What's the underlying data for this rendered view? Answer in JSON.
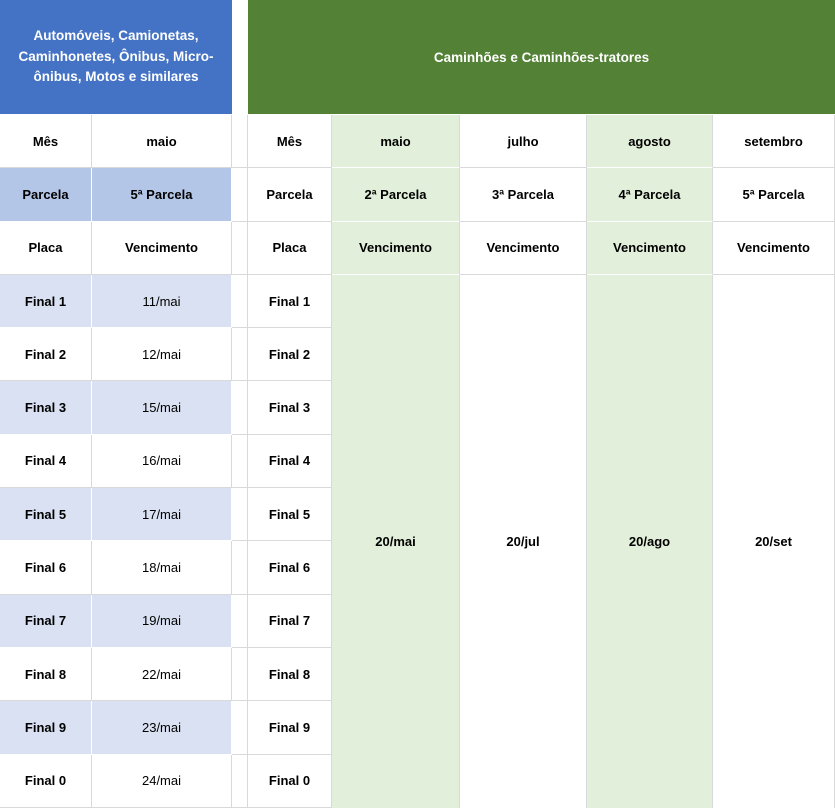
{
  "colors": {
    "blue_header": "#4472C4",
    "blue_band": "#B4C6E7",
    "blue_row": "#D9E1F2",
    "green_header": "#538135",
    "green_col": "#E2EFDA",
    "border": "#D9D9D9"
  },
  "left_table": {
    "title_lines": [
      "Automóveis, Camionetas,",
      "Caminhonetes, Ônibus, Micro-",
      "ônibus, Motos e similares"
    ],
    "month_row": {
      "label": "Mês",
      "value": "maio"
    },
    "parcela_row": {
      "label": "Parcela",
      "value": "5ª Parcela"
    },
    "placa_row": {
      "label": "Placa",
      "value": "Vencimento"
    },
    "rows": [
      {
        "final": "Final 1",
        "date": "11/mai"
      },
      {
        "final": "Final 2",
        "date": "12/mai"
      },
      {
        "final": "Final 3",
        "date": "15/mai"
      },
      {
        "final": "Final 4",
        "date": "16/mai"
      },
      {
        "final": "Final 5",
        "date": "17/mai"
      },
      {
        "final": "Final 6",
        "date": "18/mai"
      },
      {
        "final": "Final 7",
        "date": "19/mai"
      },
      {
        "final": "Final 8",
        "date": "22/mai"
      },
      {
        "final": "Final 9",
        "date": "23/mai"
      },
      {
        "final": "Final 0",
        "date": "24/mai"
      }
    ]
  },
  "right_table": {
    "title": "Caminhões e Caminhões-tratores",
    "row_labels": {
      "month": "Mês",
      "parcela": "Parcela",
      "placa": "Placa"
    },
    "columns": [
      {
        "month": "maio",
        "parcela": "2ª Parcela",
        "vencimento": "Vencimento",
        "date": "20/mai",
        "highlighted": true
      },
      {
        "month": "julho",
        "parcela": "3ª Parcela",
        "vencimento": "Vencimento",
        "date": "20/jul",
        "highlighted": false
      },
      {
        "month": "agosto",
        "parcela": "4ª Parcela",
        "vencimento": "Vencimento",
        "date": "20/ago",
        "highlighted": true
      },
      {
        "month": "setembro",
        "parcela": "5ª Parcela",
        "vencimento": "Vencimento",
        "date": "20/set",
        "highlighted": false
      }
    ],
    "finals": [
      "Final 1",
      "Final 2",
      "Final 3",
      "Final 4",
      "Final 5",
      "Final 6",
      "Final 7",
      "Final 8",
      "Final 9",
      "Final 0"
    ]
  }
}
